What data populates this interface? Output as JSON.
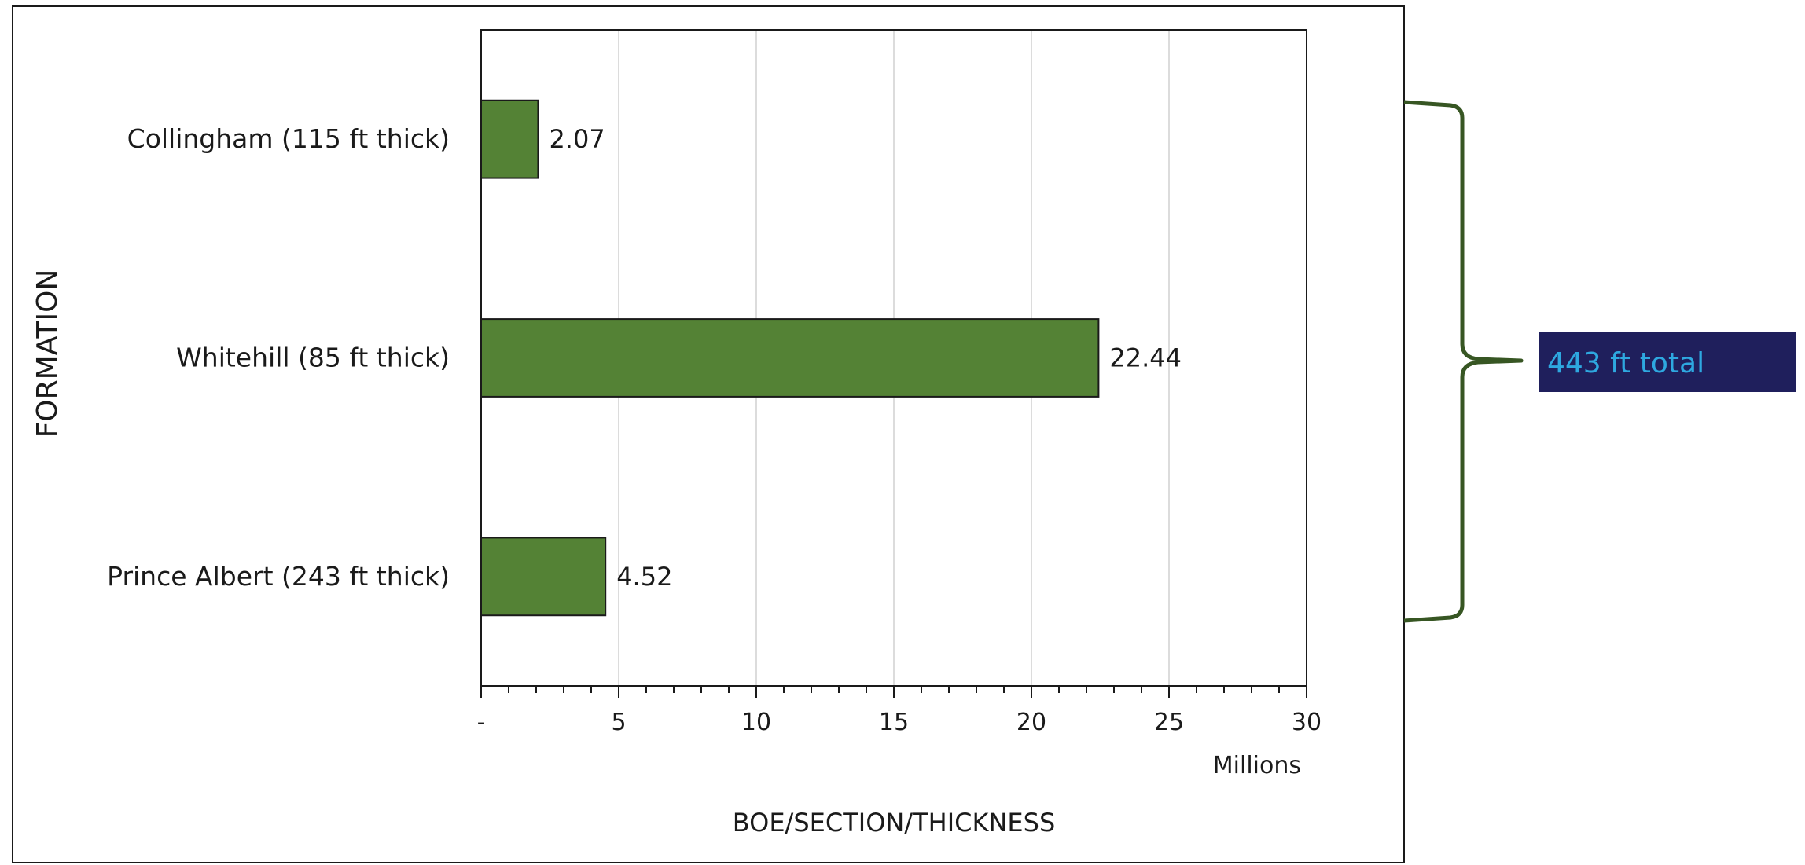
{
  "chart_data": {
    "type": "bar",
    "orientation": "horizontal",
    "categories": [
      "Collingham (115 ft thick)",
      "Whitehill (85 ft thick)",
      "Prince Albert (243 ft thick)"
    ],
    "values": [
      2.07,
      22.44,
      4.52
    ],
    "value_labels": [
      "2.07",
      "22.44",
      "4.52"
    ],
    "xlabel": "BOE/SECTION/THICKNESS",
    "ylabel": "FORMATION",
    "x_unit_label": "Millions",
    "xlim": [
      0,
      30
    ],
    "x_ticks": [
      0,
      5,
      10,
      15,
      20,
      25,
      30
    ],
    "x_tick_labels": [
      "-",
      "5",
      "10",
      "15",
      "20",
      "25",
      "30"
    ],
    "grid": "vertical",
    "bar_color": "#548235",
    "legend": "none"
  },
  "annotation": {
    "label": "443 ft total",
    "box_color": "#1f1f5c",
    "text_color": "#2ea8e0",
    "brace_color": "#375623"
  }
}
